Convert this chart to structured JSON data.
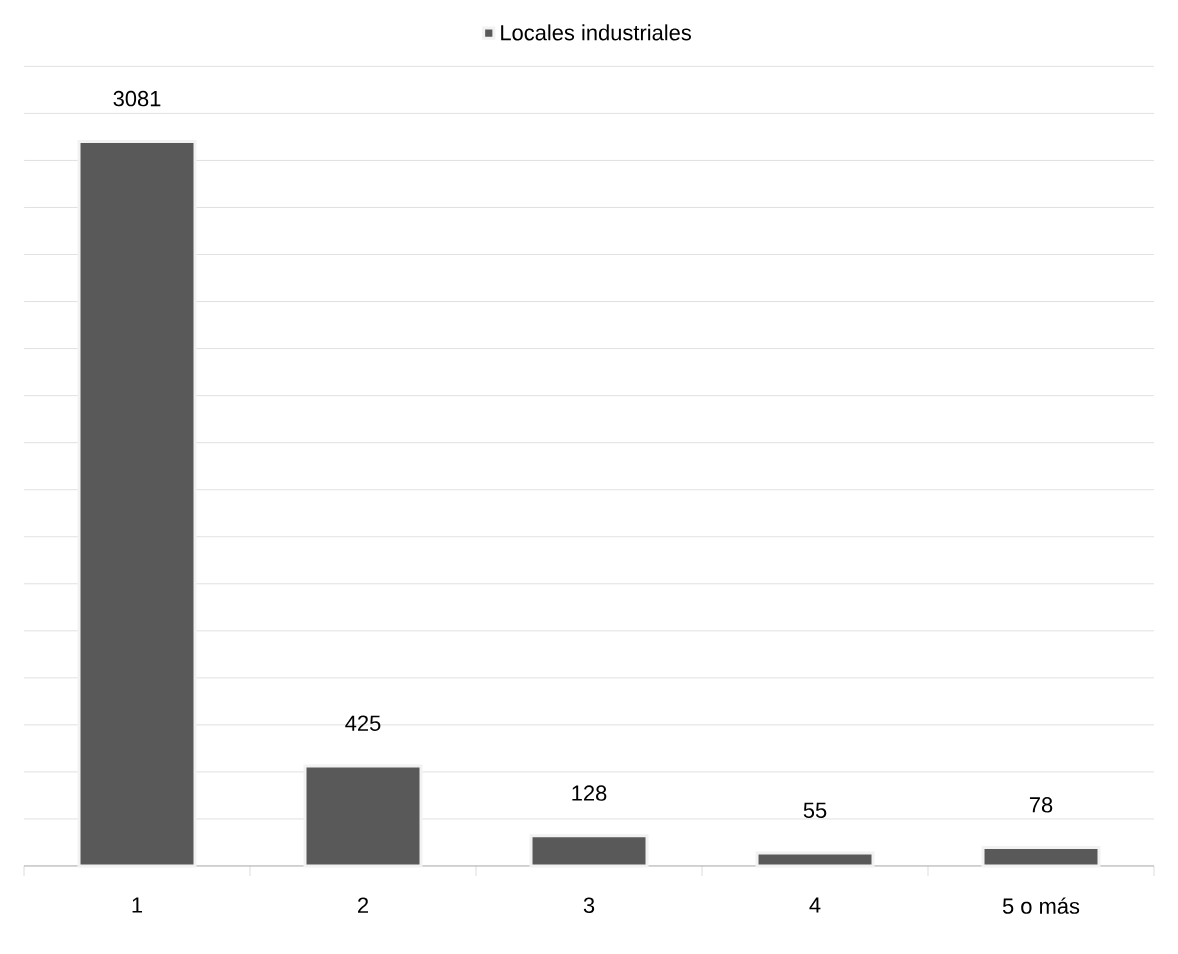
{
  "chart_data": {
    "type": "bar",
    "categories": [
      "1",
      "2",
      "3",
      "4",
      "5 o más"
    ],
    "series": [
      {
        "name": "Locales industriales",
        "color": "#595959",
        "values": [
          3081,
          425,
          128,
          55,
          78
        ]
      }
    ],
    "tick_labels": "x",
    "grid": "y",
    "legend": "top",
    "data_labels": true
  }
}
